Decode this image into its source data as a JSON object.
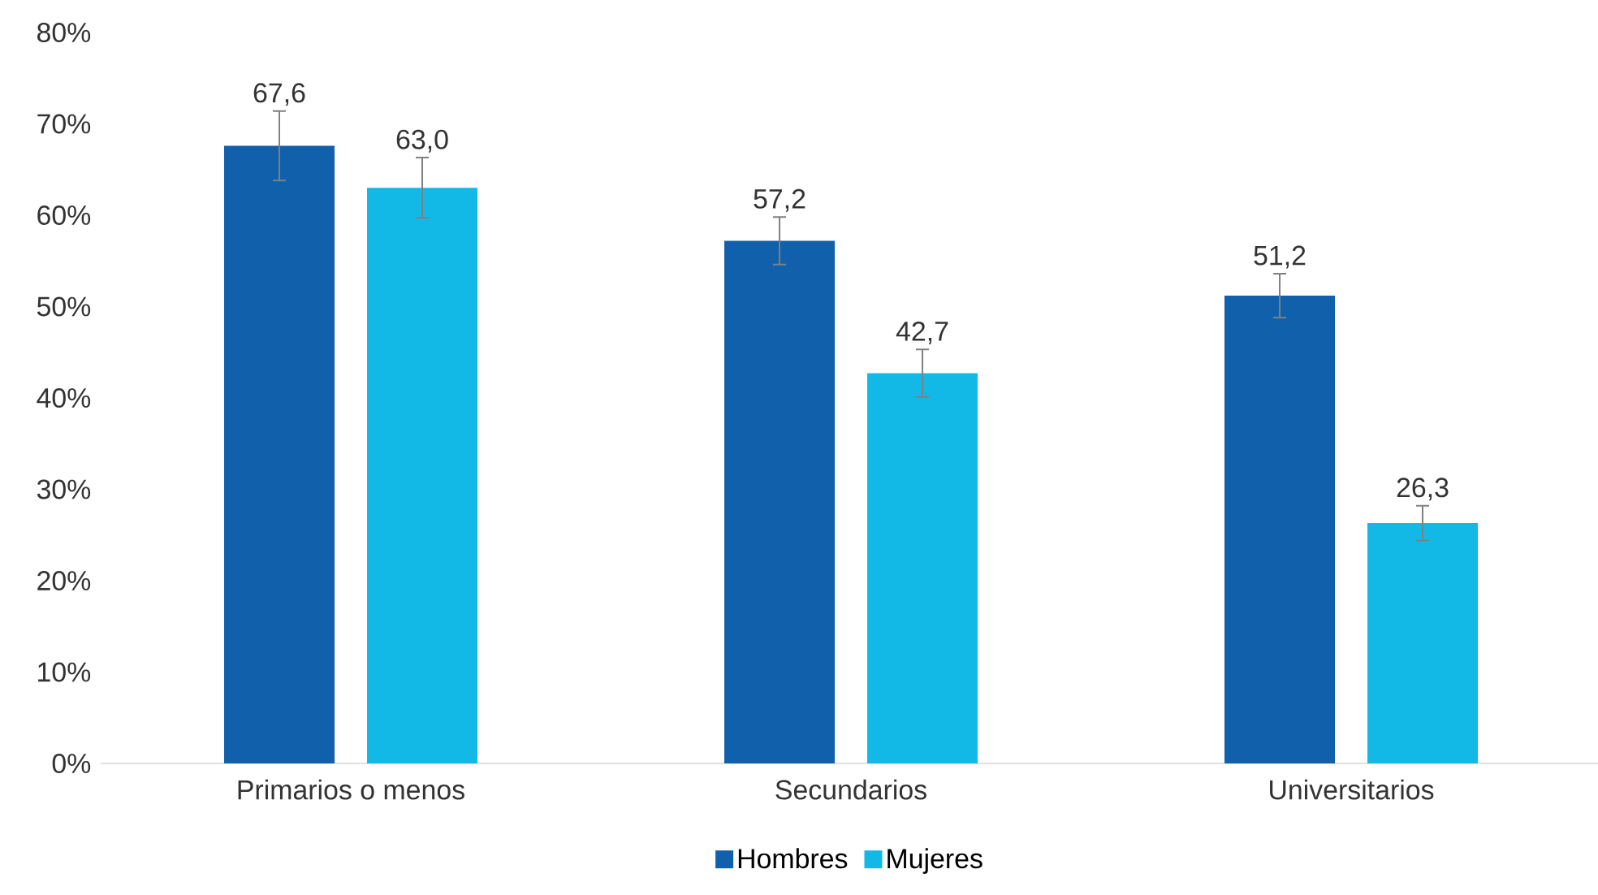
{
  "chart_data": {
    "type": "bar",
    "categories": [
      "Primarios o menos",
      "Secundarios",
      "Universitarios"
    ],
    "series": [
      {
        "name": "Hombres",
        "color": "#1060ab",
        "values": [
          67.6,
          57.2,
          51.2
        ],
        "errors": [
          3.8,
          2.6,
          2.4
        ],
        "value_labels": [
          "67,6",
          "57,2",
          "51,2"
        ]
      },
      {
        "name": "Mujeres",
        "color": "#12b9e6",
        "values": [
          63.0,
          42.7,
          26.3
        ],
        "errors": [
          3.3,
          2.6,
          1.9
        ],
        "value_labels": [
          "63,0",
          "42,7",
          "26,3"
        ]
      }
    ],
    "ylim": [
      0,
      80
    ],
    "yticks": [
      {
        "value": 0,
        "label": "0%"
      },
      {
        "value": 10,
        "label": "10%"
      },
      {
        "value": 20,
        "label": "20%"
      },
      {
        "value": 30,
        "label": "30%"
      },
      {
        "value": 40,
        "label": "40%"
      },
      {
        "value": 50,
        "label": "50%"
      },
      {
        "value": 60,
        "label": "60%"
      },
      {
        "value": 70,
        "label": "70%"
      },
      {
        "value": 80,
        "label": "80%"
      }
    ],
    "legend": "bottom"
  }
}
